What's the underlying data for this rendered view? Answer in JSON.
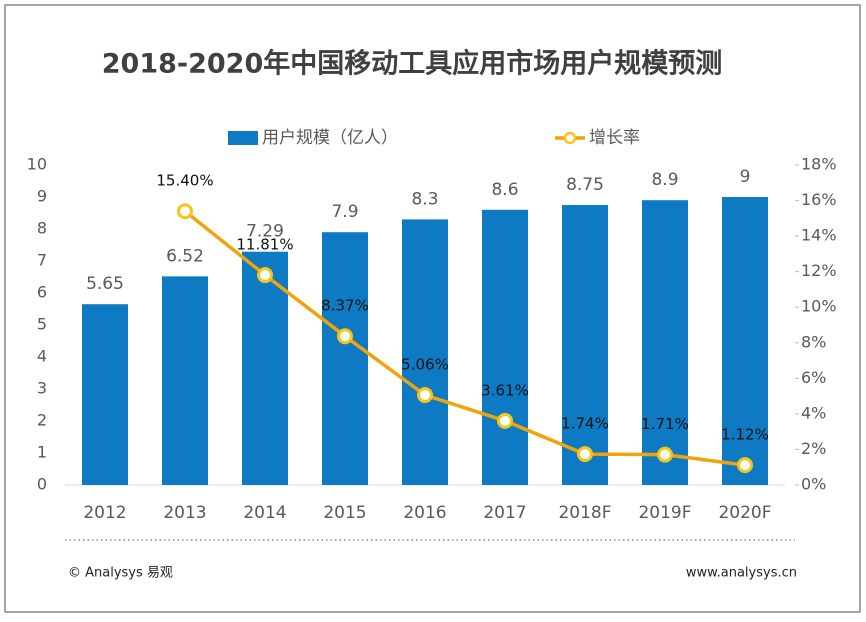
{
  "chart_data": {
    "type": "bar",
    "title": "2018-2020年中国移动工具应用市场用户规模预测",
    "categories": [
      "2012",
      "2013",
      "2014",
      "2015",
      "2016",
      "2017",
      "2018F",
      "2019F",
      "2020F"
    ],
    "series": [
      {
        "name": "用户规模（亿人）",
        "type": "bar",
        "color": "#0e7ac4",
        "values": [
          5.65,
          6.52,
          7.29,
          7.9,
          8.3,
          8.6,
          8.75,
          8.9,
          9
        ]
      },
      {
        "name": "增长率",
        "type": "line",
        "axis": "y2",
        "color": "#f0a30a",
        "values": [
          null,
          15.4,
          11.81,
          8.37,
          5.06,
          3.61,
          1.74,
          1.71,
          1.12
        ],
        "value_labels": [
          null,
          "15.40%",
          "11.81%",
          "8.37%",
          "5.06%",
          "3.61%",
          "1.74%",
          "1.71%",
          "1.12%"
        ]
      }
    ],
    "ylim": [
      0,
      10
    ],
    "yticks": [
      0,
      1,
      2,
      3,
      4,
      5,
      6,
      7,
      8,
      9,
      10
    ],
    "y2lim": [
      0,
      18
    ],
    "y2ticks": [
      {
        "value": 0,
        "label": "0%"
      },
      {
        "value": 2,
        "label": "2%"
      },
      {
        "value": 4,
        "label": "4%"
      },
      {
        "value": 6,
        "label": "6%"
      },
      {
        "value": 8,
        "label": "8%"
      },
      {
        "value": 10,
        "label": "10%"
      },
      {
        "value": 12,
        "label": "12%"
      },
      {
        "value": 14,
        "label": "14%"
      },
      {
        "value": 16,
        "label": "16%"
      },
      {
        "value": 18,
        "label": "18%"
      }
    ],
    "source": "© Analysys 易观",
    "website": "www.analysys.cn"
  }
}
